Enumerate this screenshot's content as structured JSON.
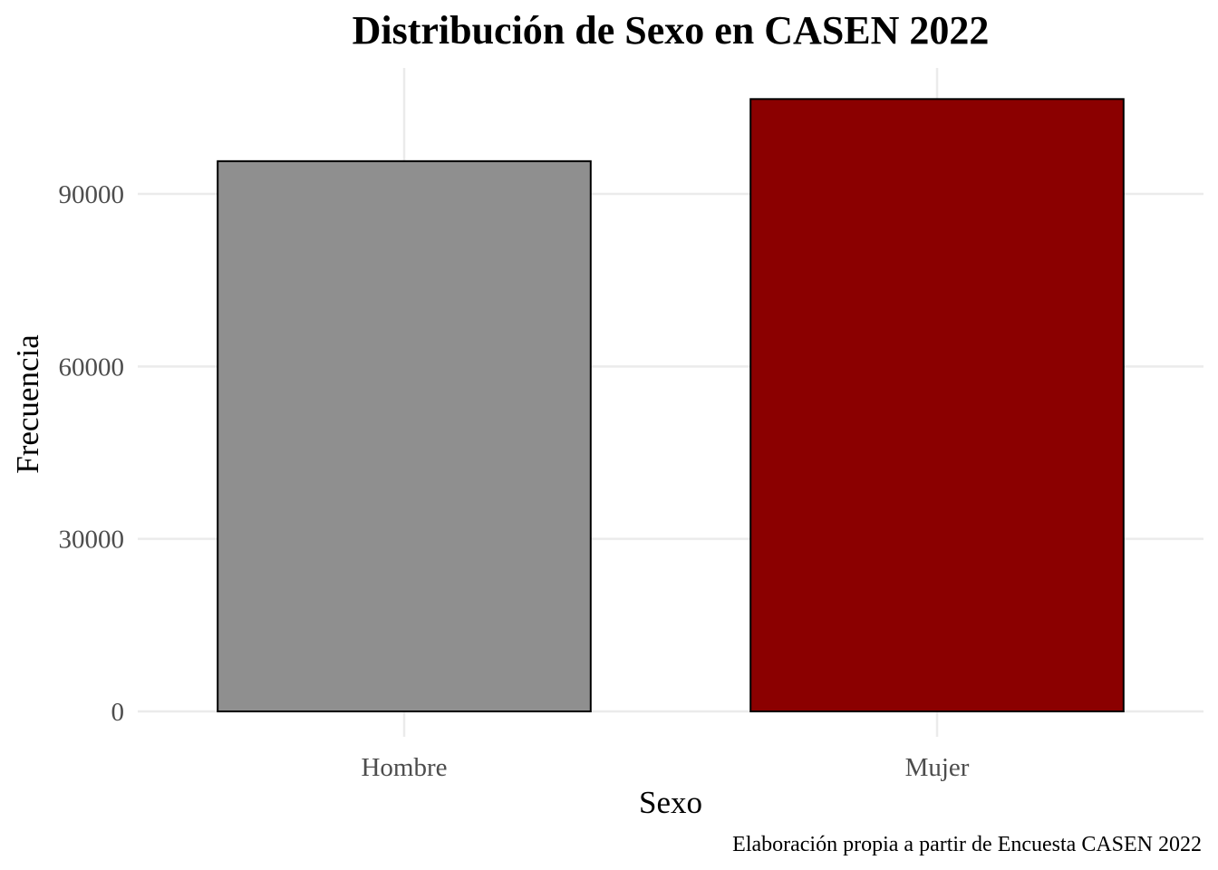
{
  "chart_data": {
    "type": "bar",
    "title": "Distribución de Sexo en CASEN 2022",
    "xlabel": "Sexo",
    "ylabel": "Frecuencia",
    "caption": "Elaboración propia a partir de Encuesta CASEN 2022",
    "categories": [
      "Hombre",
      "Mujer"
    ],
    "values": [
      95700,
      106500
    ],
    "colors": [
      "#8f8f8f",
      "#8b0000"
    ],
    "ylim": [
      0,
      110000
    ],
    "yticks": [
      0,
      30000,
      60000,
      90000
    ],
    "grid": true,
    "legend": "none"
  }
}
